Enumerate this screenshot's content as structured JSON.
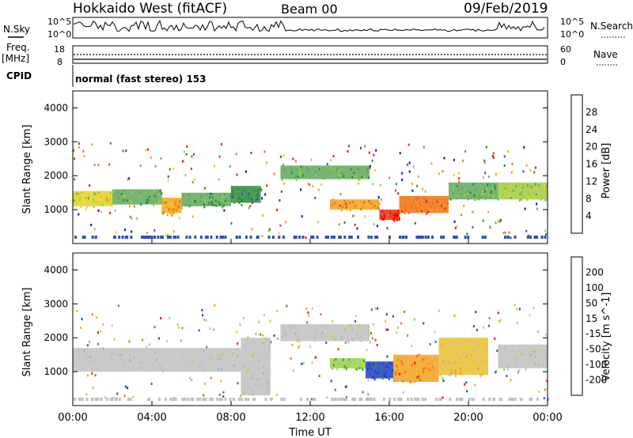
{
  "header": {
    "title": "Hokkaido West (fitACF)",
    "beam": "Beam 00",
    "date": "09/Feb/2019"
  },
  "status_panels": {
    "nsky_label": "N.Sky",
    "nsky_top": "10^5",
    "nsky_bottom": "10^0",
    "nsearch_label": "N.Search",
    "nsearch_top": "10^5",
    "nsearch_bottom": "10^0",
    "freq_label": "Freq.",
    "freq_unit": "[MHz]",
    "freq_ticks": [
      "18",
      "8"
    ],
    "nave_label": "Nave",
    "nave_ticks": [
      "60",
      "0"
    ],
    "cpid_label": "CPID",
    "cpid_text": "normal (fast stereo) 153"
  },
  "x_axis": {
    "label": "Time UT",
    "ticks": [
      "00:00",
      "04:00",
      "08:00",
      "12:00",
      "16:00",
      "20:00",
      "00:00"
    ]
  },
  "colors": {
    "power_scale": [
      "#0000ff",
      "#3050b8",
      "#2a8a3a",
      "#5fa85a",
      "#a0cc40",
      "#e8d020",
      "#f5a020",
      "#f07010",
      "#e83010",
      "#ff0000"
    ],
    "velocity_scale": [
      "#ff0000",
      "#f07010",
      "#f5a020",
      "#e8c030",
      "#c0c0c0",
      "#c0c0c0",
      "#9cd448",
      "#2aa02a",
      "#2a60b8",
      "#2040c0"
    ]
  },
  "chart_data": [
    {
      "type": "heatmap",
      "title": "Power",
      "xlabel": "",
      "ylabel": "Slant Range [km]",
      "xlim": [
        0,
        24
      ],
      "ylim": [
        0,
        4500
      ],
      "yticks": [
        "1000",
        "2000",
        "3000",
        "4000"
      ],
      "colorbar": {
        "label": "Power [dB]",
        "ticks": [
          "4",
          "8",
          "12",
          "16",
          "20",
          "24",
          "28"
        ],
        "range": [
          0,
          32
        ]
      },
      "bands": [
        {
          "t_start": 0.0,
          "t_end": 2.0,
          "range_low": 1100,
          "range_high": 1550,
          "level": 16
        },
        {
          "t_start": 2.0,
          "t_end": 4.5,
          "range_low": 1150,
          "range_high": 1600,
          "level": 12
        },
        {
          "t_start": 4.5,
          "t_end": 5.5,
          "range_low": 900,
          "range_high": 1350,
          "level": 20
        },
        {
          "t_start": 5.5,
          "t_end": 8.0,
          "range_low": 1100,
          "range_high": 1500,
          "level": 10
        },
        {
          "t_start": 8.0,
          "t_end": 9.5,
          "range_low": 1200,
          "range_high": 1700,
          "level": 8
        },
        {
          "t_start": 10.5,
          "t_end": 15.0,
          "range_low": 1900,
          "range_high": 2300,
          "level": 12
        },
        {
          "t_start": 13.0,
          "t_end": 15.5,
          "range_low": 1000,
          "range_high": 1300,
          "level": 22
        },
        {
          "t_start": 15.5,
          "t_end": 16.5,
          "range_low": 700,
          "range_high": 1000,
          "level": 28
        },
        {
          "t_start": 16.5,
          "t_end": 19.0,
          "range_low": 900,
          "range_high": 1400,
          "level": 24
        },
        {
          "t_start": 19.0,
          "t_end": 21.5,
          "range_low": 1300,
          "range_high": 1800,
          "level": 12
        },
        {
          "t_start": 21.5,
          "t_end": 24.0,
          "range_low": 1300,
          "range_high": 1800,
          "level": 14
        }
      ]
    },
    {
      "type": "heatmap",
      "title": "Velocity",
      "xlabel": "Time UT",
      "ylabel": "Slant Range [km]",
      "xlim": [
        0,
        24
      ],
      "ylim": [
        0,
        4500
      ],
      "yticks": [
        "1000",
        "2000",
        "3000",
        "4000"
      ],
      "colorbar": {
        "label": "Velocity [m s^-1]",
        "ticks": [
          "-200",
          "-100",
          "-50",
          "-15",
          "15",
          "50",
          "100",
          "200"
        ],
        "range": [
          -250,
          250
        ]
      },
      "bands": [
        {
          "t_start": 0.0,
          "t_end": 8.5,
          "range_low": 1000,
          "range_high": 1700,
          "level": 0
        },
        {
          "t_start": 8.5,
          "t_end": 10.0,
          "range_low": 300,
          "range_high": 2000,
          "level": 0
        },
        {
          "t_start": 10.5,
          "t_end": 15.0,
          "range_low": 1900,
          "range_high": 2400,
          "level": 0
        },
        {
          "t_start": 13.0,
          "t_end": 14.8,
          "range_low": 1100,
          "range_high": 1400,
          "level": 70
        },
        {
          "t_start": 14.8,
          "t_end": 16.2,
          "range_low": 800,
          "range_high": 1300,
          "level": 200
        },
        {
          "t_start": 16.2,
          "t_end": 18.5,
          "range_low": 700,
          "range_high": 1500,
          "level": -150
        },
        {
          "t_start": 18.5,
          "t_end": 21.0,
          "range_low": 900,
          "range_high": 2000,
          "level": -60
        },
        {
          "t_start": 21.5,
          "t_end": 24.0,
          "range_low": 1100,
          "range_high": 1800,
          "level": 0
        }
      ]
    }
  ]
}
